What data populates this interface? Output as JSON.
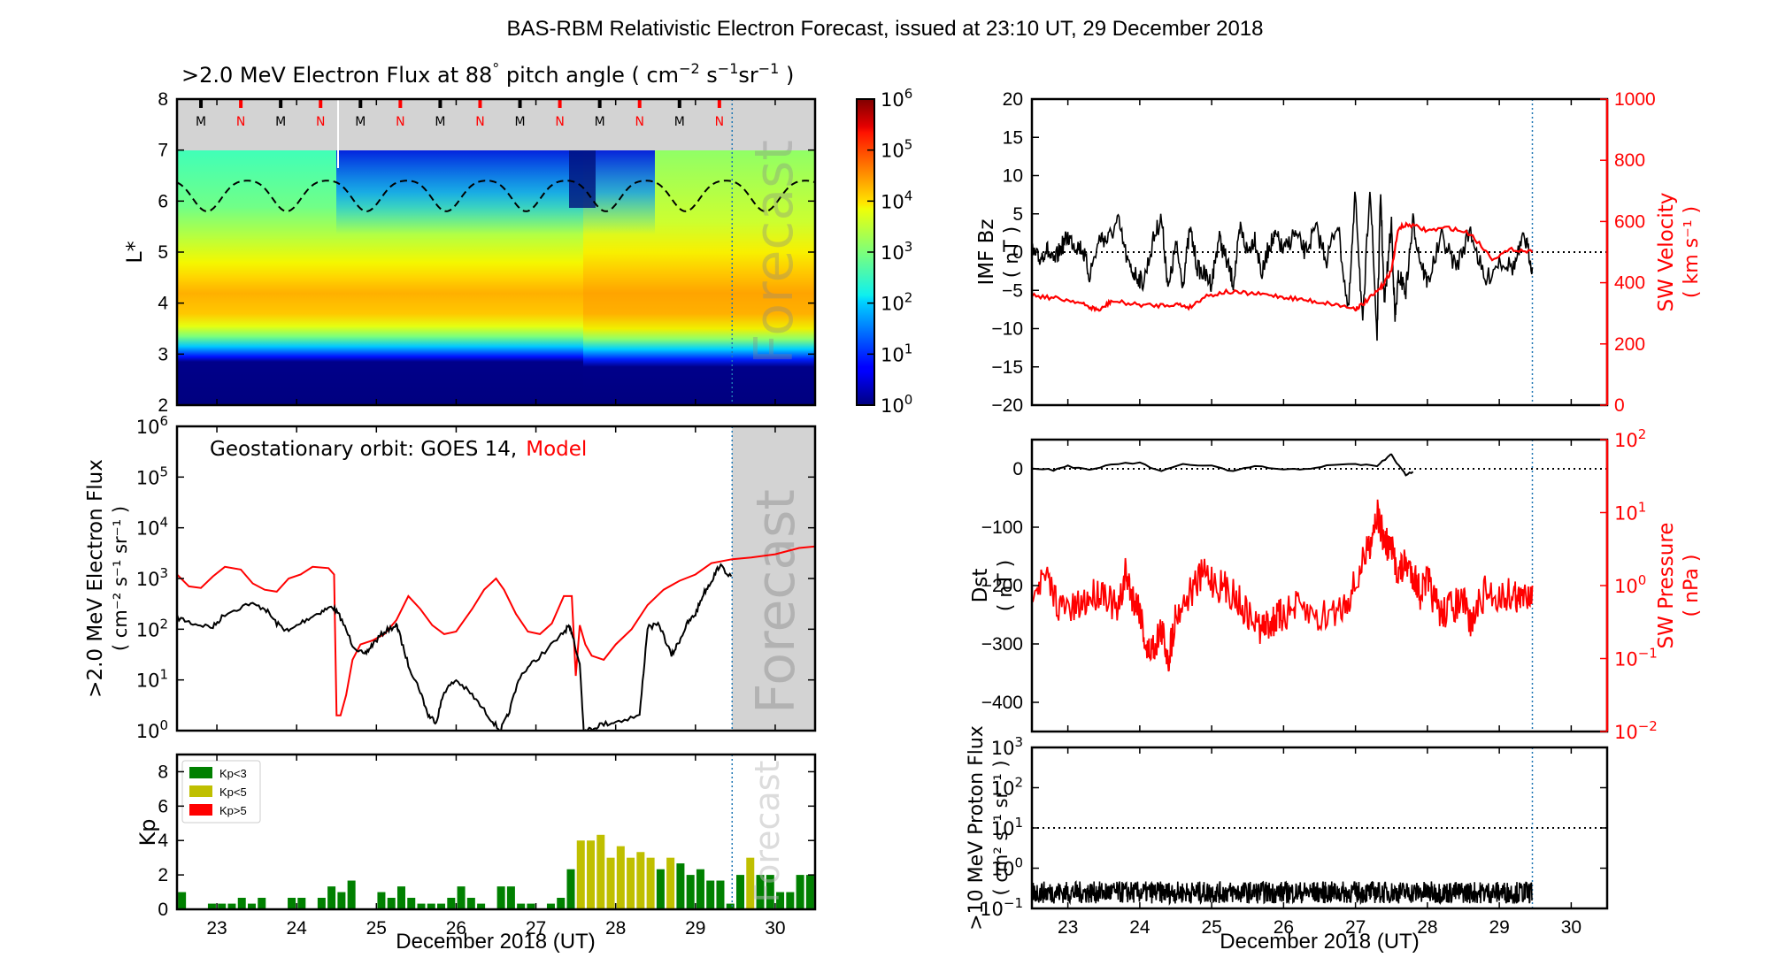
{
  "figure_title": "BAS-RBM Relativistic Electron Forecast, issued at 23:10 UT, 29 December 2018",
  "chart_data": [
    {
      "id": "lstar_spectrogram",
      "type": "heatmap",
      "title": ">2.0 MeV Electron Flux at 88° pitch angle ( cm⁻² s⁻¹ sr⁻¹ )",
      "title_parts": {
        "main": ">2.0 MeV Electron Flux at 88",
        "deg": "°",
        "rest": " pitch angle ( cm",
        "e1": "−2",
        "s": " s",
        "e2": "−1",
        "sr": "sr",
        "e3": "−1",
        "close": " )"
      },
      "ylabel": "L*",
      "xlim": [
        22.5,
        30.5
      ],
      "ylim": [
        2,
        8
      ],
      "yticks": [
        "2",
        "3",
        "4",
        "5",
        "6",
        "7",
        "8"
      ],
      "colorbar": {
        "scale": "log",
        "range": [
          1,
          1000000
        ],
        "colormap": "jet",
        "ticks": [
          {
            "base": "10",
            "exp": "0"
          },
          {
            "base": "10",
            "exp": "1"
          },
          {
            "base": "10",
            "exp": "2"
          },
          {
            "base": "10",
            "exp": "3"
          },
          {
            "base": "10",
            "exp": "4"
          },
          {
            "base": "10",
            "exp": "5"
          },
          {
            "base": "10",
            "exp": "6"
          }
        ]
      },
      "masked_region_above_L": 7,
      "mn_markers": [
        {
          "label": "M",
          "x": 22.8
        },
        {
          "label": "N",
          "x": 23.3
        },
        {
          "label": "M",
          "x": 23.8
        },
        {
          "label": "N",
          "x": 24.3
        },
        {
          "label": "M",
          "x": 24.8
        },
        {
          "label": "N",
          "x": 25.3
        },
        {
          "label": "M",
          "x": 25.8
        },
        {
          "label": "N",
          "x": 26.3
        },
        {
          "label": "M",
          "x": 26.8
        },
        {
          "label": "N",
          "x": 27.3
        },
        {
          "label": "M",
          "x": 27.8
        },
        {
          "label": "N",
          "x": 28.3
        },
        {
          "label": "M",
          "x": 28.8
        },
        {
          "label": "N",
          "x": 29.3
        }
      ],
      "geo_orbit_dashed_line": {
        "mean_L": 6.15,
        "amplitude": 0.3,
        "period_days": 1
      },
      "flux_bands": [
        {
          "L_range": [
            2,
            3.05
          ],
          "log_flux": 0
        },
        {
          "L_range": [
            3.05,
            3.3
          ],
          "log_flux": 1.5
        },
        {
          "L_range": [
            3.3,
            3.7
          ],
          "log_flux": 3.2
        },
        {
          "L_range": [
            3.7,
            4.6
          ],
          "log_flux": 4.6
        },
        {
          "L_range": [
            4.6,
            5.2
          ],
          "log_flux": 4.1
        },
        {
          "L_range": [
            5.2,
            6.0
          ],
          "log_flux": 3.4
        },
        {
          "L_range": [
            6.0,
            7.0
          ],
          "log_flux": 2.8
        }
      ],
      "forecast_start": 29.46,
      "forecast_label": "Forecast"
    },
    {
      "id": "geo_flux",
      "type": "line",
      "title": "Geostationary orbit:   GOES 14,",
      "legend_model": "Model",
      "ylabel_line1": ">2.0 MeV Electron Flux",
      "ylabel_line2": "( cm⁻² s⁻¹ sr⁻¹ )",
      "yscale": "log",
      "ylim": [
        1,
        1000000
      ],
      "yticks": [
        {
          "base": "10",
          "exp": "0"
        },
        {
          "base": "10",
          "exp": "1"
        },
        {
          "base": "10",
          "exp": "2"
        },
        {
          "base": "10",
          "exp": "3"
        },
        {
          "base": "10",
          "exp": "4"
        },
        {
          "base": "10",
          "exp": "5"
        },
        {
          "base": "10",
          "exp": "6"
        }
      ],
      "xlim": [
        22.5,
        30.5
      ],
      "series": [
        {
          "name": "GOES 14",
          "color": "#000000",
          "x": [
            22.5,
            22.7,
            22.95,
            23.1,
            23.4,
            23.6,
            23.75,
            23.9,
            24.1,
            24.3,
            24.45,
            24.55,
            24.7,
            24.85,
            24.95,
            25.1,
            25.25,
            25.27,
            25.4,
            25.55,
            25.65,
            25.75,
            25.85,
            26.0,
            26.2,
            26.4,
            26.55,
            26.65,
            26.8,
            27.0,
            27.3,
            27.4,
            27.45,
            27.55,
            27.6,
            27.65,
            27.8,
            28.0,
            28.3,
            28.4,
            28.55,
            28.7,
            28.8,
            28.9,
            29.0,
            29.1,
            29.2,
            29.3,
            29.45
          ],
          "y": [
            170,
            130,
            110,
            200,
            320,
            260,
            130,
            90,
            150,
            220,
            280,
            170,
            50,
            30,
            50,
            90,
            120,
            100,
            20,
            6,
            2,
            1.5,
            6,
            10,
            5,
            2,
            1,
            2,
            12,
            25,
            70,
            110,
            90,
            20,
            1,
            1,
            1.3,
            1.5,
            2,
            110,
            120,
            30,
            60,
            130,
            200,
            500,
            900,
            1800,
            1100
          ]
        },
        {
          "name": "Model",
          "color": "#ff0000",
          "x": [
            22.5,
            22.65,
            22.8,
            22.95,
            23.1,
            23.3,
            23.45,
            23.6,
            23.75,
            23.9,
            24.05,
            24.2,
            24.4,
            24.47,
            24.5,
            24.55,
            24.62,
            24.7,
            24.8,
            24.95,
            25.1,
            25.25,
            25.4,
            25.55,
            25.7,
            25.85,
            26.0,
            26.2,
            26.35,
            26.5,
            26.6,
            26.75,
            26.9,
            27.05,
            27.2,
            27.35,
            27.45,
            27.5,
            27.55,
            27.62,
            27.7,
            27.85,
            28.0,
            28.2,
            28.4,
            28.6,
            28.8,
            29.0,
            29.2,
            29.46,
            29.7,
            30.0,
            30.3,
            30.5
          ],
          "y": [
            1200,
            700,
            650,
            1100,
            1700,
            1500,
            800,
            600,
            550,
            1000,
            1200,
            1700,
            1600,
            1200,
            2,
            2,
            5,
            25,
            50,
            60,
            80,
            150,
            450,
            250,
            120,
            80,
            90,
            250,
            600,
            1000,
            600,
            200,
            90,
            80,
            130,
            450,
            450,
            12,
            120,
            50,
            30,
            25,
            50,
            100,
            300,
            600,
            900,
            1200,
            2000,
            2400,
            2600,
            3000,
            4000,
            4300
          ]
        }
      ],
      "forecast_start": 29.46,
      "forecast_label": "Forecast"
    },
    {
      "id": "kp_index",
      "type": "bar",
      "ylabel": "Kp",
      "xlabel": "December 2018 (UT)",
      "xlim": [
        22.5,
        30.5
      ],
      "ylim": [
        0,
        9
      ],
      "yticks": [
        "0",
        "2",
        "4",
        "6",
        "8"
      ],
      "xticks": [
        "23",
        "24",
        "25",
        "26",
        "27",
        "28",
        "29",
        "30"
      ],
      "legend": [
        {
          "label": "Kp<3",
          "color": "#008000"
        },
        {
          "label": "Kp<5",
          "color": "#bfbf00"
        },
        {
          "label": "Kp>5",
          "color": "#ff0000"
        }
      ],
      "bar_interval_hours": 3,
      "x_start": 22.5,
      "values": [
        1.0,
        0,
        0,
        0.33,
        0.33,
        0.33,
        0.67,
        0.33,
        0.67,
        0,
        0,
        0.67,
        0.67,
        0,
        0.67,
        1.33,
        1.0,
        1.67,
        0,
        0,
        1.0,
        0.67,
        1.33,
        0.67,
        0.33,
        0.33,
        0.33,
        0.67,
        1.33,
        0.67,
        0.33,
        0,
        1.33,
        1.33,
        0.33,
        0.33,
        0,
        0.33,
        0.67,
        2.33,
        4.0,
        4.0,
        4.33,
        3.0,
        3.67,
        3.0,
        3.33,
        3.0,
        2.33,
        3.0,
        2.67,
        2.0,
        2.33,
        1.67,
        1.67,
        0.33,
        2.0,
        3.0,
        2.0,
        2.0,
        1.0,
        1.0,
        2.0,
        2.0
      ],
      "forecast_start": 29.46,
      "forecast_label": "Forecast"
    },
    {
      "id": "imf_bz_sw_velocity",
      "type": "line",
      "ylabel_line1": "IMF Bz",
      "ylabel_line2": "( nT )",
      "ylim": [
        -20,
        20
      ],
      "yticks": [
        "−20",
        "−15",
        "−10",
        "−5",
        "0",
        "5",
        "10",
        "15",
        "20"
      ],
      "ylabel2_line1": "SW Velocity",
      "ylabel2_line2": "( km s⁻¹ )",
      "y2lim": [
        0,
        1000
      ],
      "y2ticks": [
        "0",
        "200",
        "400",
        "600",
        "800",
        "1000"
      ],
      "xlim": [
        22.5,
        30.5
      ],
      "series": [
        {
          "name": "IMF Bz",
          "color": "#000000",
          "axis": "left",
          "x": [
            22.5,
            22.6,
            22.7,
            22.8,
            22.9,
            23.0,
            23.1,
            23.2,
            23.3,
            23.45,
            23.55,
            23.7,
            23.85,
            23.95,
            24.05,
            24.2,
            24.3,
            24.4,
            24.5,
            24.6,
            24.7,
            24.8,
            24.9,
            25.0,
            25.1,
            25.2,
            25.3,
            25.4,
            25.5,
            25.6,
            25.7,
            25.8,
            25.9,
            26.0,
            26.15,
            26.3,
            26.45,
            26.6,
            26.75,
            26.9,
            27.0,
            27.1,
            27.2,
            27.3,
            27.35,
            27.4,
            27.5,
            27.55,
            27.6,
            27.7,
            27.8,
            27.9,
            28.0,
            28.2,
            28.4,
            28.6,
            28.8,
            29.0,
            29.2,
            29.35,
            29.46
          ],
          "y": [
            0,
            -1,
            0.5,
            -1.5,
            0.5,
            2,
            1,
            0.5,
            -3,
            2,
            1.5,
            4,
            -2,
            -3,
            -4,
            2,
            4.5,
            -5,
            1,
            -4,
            3,
            -2,
            -3,
            -4,
            2,
            -1,
            -4,
            3,
            0,
            2,
            -3,
            1,
            2,
            0,
            2.5,
            0,
            3,
            -1,
            4,
            -8,
            8,
            -10,
            9,
            -11,
            8,
            -7,
            4,
            -9,
            -3,
            -5,
            4,
            -1,
            -4,
            2,
            -2,
            3,
            -4,
            -1,
            -2,
            2,
            -2
          ]
        },
        {
          "name": "SW Velocity",
          "color": "#ff0000",
          "axis": "right",
          "x": [
            22.5,
            22.8,
            23.1,
            23.3,
            23.45,
            23.6,
            23.9,
            24.2,
            24.5,
            24.7,
            24.9,
            25.2,
            25.5,
            25.8,
            26.1,
            26.4,
            26.7,
            27.0,
            27.1,
            27.3,
            27.4,
            27.5,
            27.6,
            27.75,
            28.0,
            28.3,
            28.6,
            28.9,
            29.2,
            29.46
          ],
          "y": [
            360,
            350,
            340,
            320,
            310,
            340,
            330,
            325,
            330,
            320,
            355,
            370,
            365,
            360,
            350,
            340,
            330,
            315,
            330,
            370,
            400,
            440,
            580,
            590,
            570,
            580,
            560,
            480,
            510,
            500
          ]
        }
      ],
      "zero_line": 0,
      "forecast_start": 29.46
    },
    {
      "id": "dst_sw_pressure",
      "type": "line",
      "ylabel_line1": "Dst",
      "ylabel_line2": "( nT )",
      "ylim": [
        -450,
        50
      ],
      "yticks": [
        "−400",
        "−300",
        "−200",
        "−100",
        "0"
      ],
      "ylabel2_line1": "SW Pressure",
      "ylabel2_line2": "( nPa )",
      "y2scale": "log",
      "y2lim": [
        0.01,
        100
      ],
      "y2ticks": [
        {
          "base": "10",
          "exp": "−2"
        },
        {
          "base": "10",
          "exp": "−1"
        },
        {
          "base": "10",
          "exp": "0"
        },
        {
          "base": "10",
          "exp": "1"
        },
        {
          "base": "10",
          "exp": "2"
        }
      ],
      "xlim": [
        22.5,
        30.5
      ],
      "series": [
        {
          "name": "Dst",
          "color": "#000000",
          "axis": "left",
          "x": [
            22.5,
            22.8,
            23.0,
            23.3,
            23.6,
            24.0,
            24.3,
            24.6,
            25.0,
            25.3,
            25.6,
            26.0,
            26.3,
            26.6,
            27.0,
            27.3,
            27.45,
            27.5,
            27.6,
            27.7,
            27.8
          ],
          "y": [
            2,
            -2,
            5,
            -3,
            8,
            10,
            -5,
            8,
            5,
            -5,
            5,
            -2,
            0,
            5,
            8,
            5,
            20,
            25,
            5,
            -10,
            -5
          ]
        },
        {
          "name": "SW Pressure",
          "color": "#ff0000",
          "axis": "right",
          "x": [
            22.5,
            22.7,
            22.9,
            23.1,
            23.3,
            23.5,
            23.7,
            23.8,
            23.9,
            24.0,
            24.1,
            24.2,
            24.3,
            24.4,
            24.5,
            24.7,
            24.9,
            25.1,
            25.3,
            25.5,
            25.7,
            25.8,
            25.9,
            26.0,
            26.2,
            26.5,
            26.8,
            27.0,
            27.2,
            27.3,
            27.4,
            27.5,
            27.6,
            27.7,
            27.8,
            27.9,
            28.0,
            28.1,
            28.2,
            28.3,
            28.5,
            28.6,
            28.8,
            29.0,
            29.2,
            29.3,
            29.46
          ],
          "y": [
            1.0,
            1.2,
            0.5,
            0.45,
            0.7,
            0.9,
            0.4,
            1.5,
            0.7,
            0.5,
            0.12,
            0.15,
            0.25,
            0.1,
            0.4,
            0.8,
            1.5,
            1.0,
            0.8,
            0.4,
            0.25,
            0.3,
            0.35,
            0.4,
            0.5,
            0.35,
            0.5,
            1.0,
            4.0,
            10,
            4.0,
            3.0,
            1.5,
            2.0,
            1.5,
            0.8,
            1.2,
            0.6,
            0.4,
            0.5,
            0.6,
            0.3,
            0.8,
            0.7,
            0.8,
            0.6,
            1.0
          ]
        }
      ],
      "zero_line": 0,
      "forecast_start": 29.46
    },
    {
      "id": "proton_flux",
      "type": "line",
      "ylabel_line1": ">10 MeV Proton Flux",
      "ylabel_line2": "( cm² s⁻¹ sr⁻¹ )",
      "xlabel": "December 2018 (UT)",
      "yscale": "log",
      "ylim": [
        0.1,
        1000
      ],
      "yticks": [
        {
          "base": "10",
          "exp": "−1"
        },
        {
          "base": "10",
          "exp": "0"
        },
        {
          "base": "10",
          "exp": "1"
        },
        {
          "base": "10",
          "exp": "2"
        },
        {
          "base": "10",
          "exp": "3"
        }
      ],
      "xticks": [
        "23",
        "24",
        "25",
        "26",
        "27",
        "28",
        "29",
        "30"
      ],
      "xlim": [
        22.5,
        30.5
      ],
      "series": [
        {
          "name": ">10 MeV Proton Flux",
          "color": "#000000",
          "mean": 0.25,
          "noise_range": [
            0.12,
            0.6
          ],
          "x_range": [
            22.5,
            29.46
          ]
        }
      ],
      "threshold_line": 10,
      "forecast_start": 29.46
    }
  ]
}
